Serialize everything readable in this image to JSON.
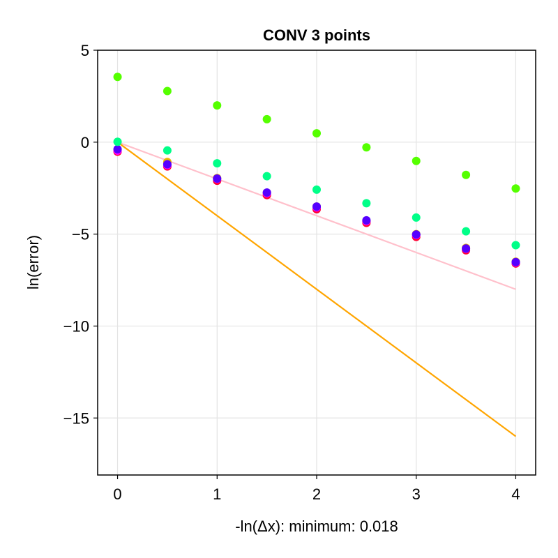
{
  "chart_data": {
    "type": "scatter",
    "title": "CONV 3 points",
    "xlabel": "-ln(Δx): minimum: 0.018",
    "ylabel": "ln(error)",
    "xlim": [
      -0.2,
      4.2
    ],
    "ylim": [
      -18.1,
      5
    ],
    "xticks": [
      0,
      1,
      2,
      3,
      4
    ],
    "xtick_labels": [
      "0",
      "1",
      "2",
      "3",
      "4"
    ],
    "yticks": [
      5,
      0,
      -5,
      -10,
      -15
    ],
    "ytick_labels": [
      "5",
      "0",
      "−5",
      "−10",
      "−15"
    ],
    "grid": true,
    "legend": "none",
    "x": [
      0,
      0.5,
      1,
      1.5,
      2,
      2.5,
      3,
      3.5,
      4
    ],
    "series": [
      {
        "color": "#ff0033",
        "values": [
          -0.52,
          -1.32,
          -2.1,
          -2.88,
          -3.65,
          -4.39,
          -5.15,
          -5.88,
          -6.6
        ]
      },
      {
        "color": "#e5b800",
        "values": [
          -0.42,
          -1.08,
          -1.95,
          -2.75,
          -3.5,
          -4.3,
          -5.0,
          -5.75,
          -6.5
        ]
      },
      {
        "color": "#ff00ff",
        "values": [
          -0.46,
          -1.25,
          -2.0,
          -2.78,
          -3.55,
          -4.3,
          -5.05,
          -5.8,
          -6.55
        ]
      },
      {
        "color": "#5500ff",
        "values": [
          -0.38,
          -1.2,
          -1.98,
          -2.74,
          -3.5,
          -4.25,
          -5.02,
          -5.78,
          -6.52
        ]
      },
      {
        "color": "#00ff88",
        "values": [
          0.02,
          -0.45,
          -1.15,
          -1.85,
          -2.58,
          -3.32,
          -4.1,
          -4.85,
          -5.6
        ]
      },
      {
        "color": "#55ff00",
        "values": [
          3.55,
          2.78,
          2.0,
          1.25,
          0.48,
          -0.28,
          -1.02,
          -1.78,
          -2.52
        ]
      }
    ],
    "reference_lines": [
      {
        "color": "#ffc0cb",
        "x": [
          0,
          4
        ],
        "y": [
          0,
          -8
        ]
      },
      {
        "color": "#ffa500",
        "x": [
          0,
          4
        ],
        "y": [
          0,
          -16
        ]
      }
    ]
  }
}
